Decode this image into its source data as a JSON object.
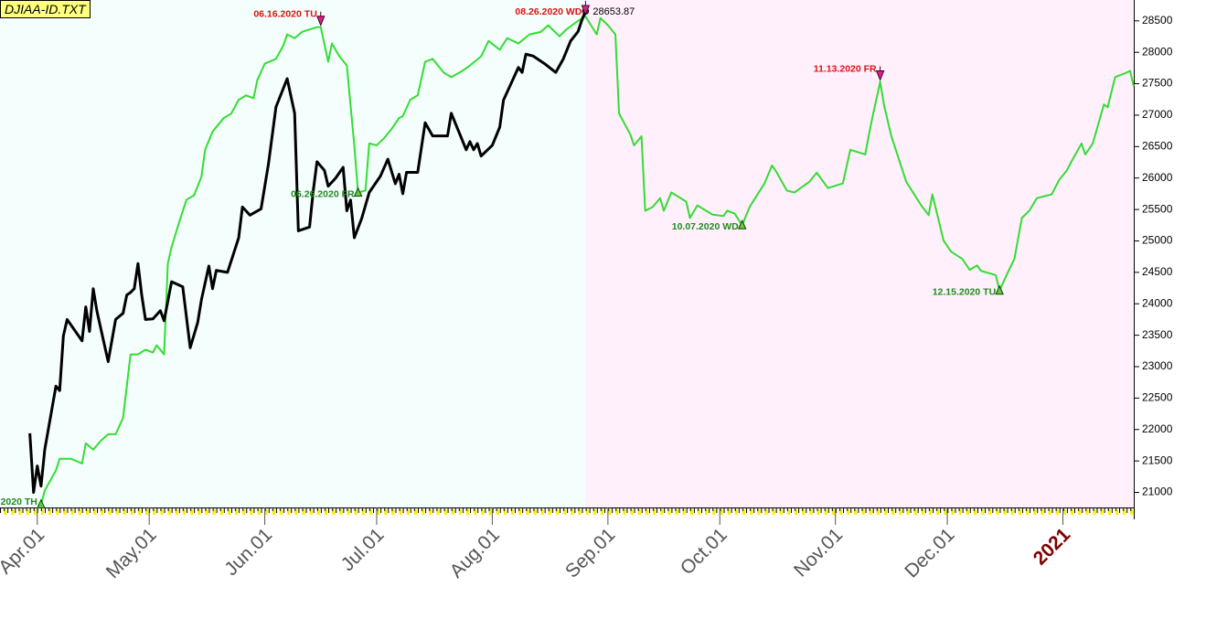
{
  "chart_data": {
    "type": "line",
    "title": "DJIAA-ID.TXT",
    "xlim": [
      "2020-03-22",
      "2021-01-20"
    ],
    "ylim": [
      20760,
      28730
    ],
    "yticks": [
      21000,
      21500,
      22000,
      22500,
      23000,
      23500,
      24000,
      24500,
      25000,
      25500,
      26000,
      26500,
      27000,
      27500,
      28000,
      28500
    ],
    "xticks": [
      {
        "value": "2020-04-01",
        "label": "Apr.01"
      },
      {
        "value": "2020-05-01",
        "label": "May.01"
      },
      {
        "value": "2020-06-01",
        "label": "Jun.01"
      },
      {
        "value": "2020-07-01",
        "label": "Jul.01"
      },
      {
        "value": "2020-08-01",
        "label": "Aug.01"
      },
      {
        "value": "2020-09-01",
        "label": "Sep.01"
      },
      {
        "value": "2020-10-01",
        "label": "Oct.01"
      },
      {
        "value": "2020-11-01",
        "label": "Nov.01"
      },
      {
        "value": "2020-12-01",
        "label": "Dec.01"
      },
      {
        "value": "2021-01-01",
        "label": "2021",
        "color": "#800000"
      }
    ],
    "past_background": "#f4fffd",
    "future_background": "#fff0fc",
    "annotation_colors": {
      "high": "#dd1111",
      "low": "#1f8a1f"
    },
    "series": [
      {
        "color": "#000000",
        "x": [
          "2020-03-30",
          "2020-03-31",
          "2020-04-01",
          "2020-04-02",
          "2020-04-03",
          "2020-04-06",
          "2020-04-07",
          "2020-04-08",
          "2020-04-09",
          "2020-04-13",
          "2020-04-14",
          "2020-04-15",
          "2020-04-16",
          "2020-04-17",
          "2020-04-20",
          "2020-04-22",
          "2020-04-24",
          "2020-04-25",
          "2020-04-26",
          "2020-04-27",
          "2020-04-28",
          "2020-04-29",
          "2020-04-30",
          "2020-05-02",
          "2020-05-04",
          "2020-05-05",
          "2020-05-07",
          "2020-05-10",
          "2020-05-12",
          "2020-05-14",
          "2020-05-15",
          "2020-05-17",
          "2020-05-18",
          "2020-05-19",
          "2020-05-22",
          "2020-05-25",
          "2020-05-26",
          "2020-05-28",
          "2020-05-31",
          "2020-06-02",
          "2020-06-04",
          "2020-06-07",
          "2020-06-09",
          "2020-06-10",
          "2020-06-13",
          "2020-06-14",
          "2020-06-15",
          "2020-06-17",
          "2020-06-18",
          "2020-06-20",
          "2020-06-22",
          "2020-06-23",
          "2020-06-24",
          "2020-06-25",
          "2020-06-27",
          "2020-06-29",
          "2020-07-02",
          "2020-07-04",
          "2020-07-06",
          "2020-07-07",
          "2020-07-08",
          "2020-07-09",
          "2020-07-12",
          "2020-07-14",
          "2020-07-16",
          "2020-07-20",
          "2020-07-21",
          "2020-07-25",
          "2020-07-26",
          "2020-07-27",
          "2020-07-28",
          "2020-07-29",
          "2020-08-01",
          "2020-08-03",
          "2020-08-04",
          "2020-08-06",
          "2020-08-08",
          "2020-08-09",
          "2020-08-10",
          "2020-08-12",
          "2020-08-15",
          "2020-08-18",
          "2020-08-20",
          "2020-08-22",
          "2020-08-24",
          "2020-08-25",
          "2020-08-26"
        ],
        "values": [
          21940,
          21000,
          21420,
          21100,
          21680,
          22690,
          22620,
          23490,
          23750,
          23410,
          23950,
          23560,
          24240,
          23880,
          23080,
          23750,
          23850,
          24140,
          24180,
          24240,
          24640,
          24140,
          23750,
          23760,
          23890,
          23730,
          24350,
          24270,
          23300,
          23700,
          24060,
          24600,
          24240,
          24530,
          24500,
          25050,
          25540,
          25410,
          25510,
          26230,
          27130,
          27580,
          27030,
          25160,
          25220,
          25800,
          26260,
          26120,
          25870,
          26000,
          26170,
          25480,
          25650,
          25050,
          25360,
          25770,
          26030,
          26300,
          25910,
          26060,
          25750,
          26090,
          26090,
          26880,
          26670,
          26670,
          27030,
          26450,
          26580,
          26450,
          26550,
          26350,
          26520,
          26810,
          27240,
          27500,
          27760,
          27680,
          27970,
          27940,
          27820,
          27680,
          27890,
          28180,
          28330,
          28510,
          28653.87
        ]
      },
      {
        "color": "#33dd33",
        "x": [
          "2020-04-02",
          "2020-04-03",
          "2020-04-06",
          "2020-04-07",
          "2020-04-10",
          "2020-04-13",
          "2020-04-14",
          "2020-04-16",
          "2020-04-18",
          "2020-04-20",
          "2020-04-22",
          "2020-04-24",
          "2020-04-26",
          "2020-04-28",
          "2020-04-30",
          "2020-05-02",
          "2020-05-03",
          "2020-05-05",
          "2020-05-06",
          "2020-05-07",
          "2020-05-09",
          "2020-05-11",
          "2020-05-13",
          "2020-05-15",
          "2020-05-16",
          "2020-05-18",
          "2020-05-21",
          "2020-05-23",
          "2020-05-25",
          "2020-05-27",
          "2020-05-29",
          "2020-05-30",
          "2020-06-01",
          "2020-06-04",
          "2020-06-06",
          "2020-06-07",
          "2020-06-09",
          "2020-06-11",
          "2020-06-15",
          "2020-06-16",
          "2020-06-18",
          "2020-06-19",
          "2020-06-21",
          "2020-06-23",
          "2020-06-25",
          "2020-06-26",
          "2020-06-28",
          "2020-06-29",
          "2020-07-01",
          "2020-07-03",
          "2020-07-05",
          "2020-07-07",
          "2020-07-08",
          "2020-07-10",
          "2020-07-12",
          "2020-07-14",
          "2020-07-16",
          "2020-07-19",
          "2020-07-21",
          "2020-07-24",
          "2020-07-26",
          "2020-07-29",
          "2020-07-31",
          "2020-08-03",
          "2020-08-05",
          "2020-08-08",
          "2020-08-11",
          "2020-08-14",
          "2020-08-16",
          "2020-08-19",
          "2020-08-21",
          "2020-08-24",
          "2020-08-26",
          "2020-08-29",
          "2020-08-30",
          "2020-09-01",
          "2020-09-03",
          "2020-09-04",
          "2020-09-07",
          "2020-09-08",
          "2020-09-10",
          "2020-09-11",
          "2020-09-13",
          "2020-09-15",
          "2020-09-16",
          "2020-09-18",
          "2020-09-22",
          "2020-09-23",
          "2020-09-25",
          "2020-09-29",
          "2020-10-02",
          "2020-10-03",
          "2020-10-05",
          "2020-10-07",
          "2020-10-09",
          "2020-10-13",
          "2020-10-15",
          "2020-10-16",
          "2020-10-19",
          "2020-10-21",
          "2020-10-25",
          "2020-10-27",
          "2020-10-30",
          "2020-11-03",
          "2020-11-05",
          "2020-11-09",
          "2020-11-10",
          "2020-11-11",
          "2020-11-13",
          "2020-11-14",
          "2020-11-16",
          "2020-11-20",
          "2020-11-24",
          "2020-11-26",
          "2020-11-27",
          "2020-11-30",
          "2020-12-02",
          "2020-12-05",
          "2020-12-07",
          "2020-12-09",
          "2020-12-10",
          "2020-12-14",
          "2020-12-15",
          "2020-12-17",
          "2020-12-19",
          "2020-12-21",
          "2020-12-23",
          "2020-12-25",
          "2020-12-29",
          "2020-12-31",
          "2021-01-02",
          "2021-01-03",
          "2021-01-06",
          "2021-01-07",
          "2021-01-09",
          "2021-01-12",
          "2021-01-13",
          "2021-01-15",
          "2021-01-18",
          "2021-01-19",
          "2021-01-20"
        ],
        "values": [
          20810,
          21030,
          21350,
          21535,
          21535,
          21460,
          21780,
          21680,
          21820,
          21925,
          21925,
          22185,
          23195,
          23195,
          23270,
          23225,
          23340,
          23195,
          24640,
          24900,
          25290,
          25655,
          25725,
          26015,
          26450,
          26740,
          26955,
          27025,
          27245,
          27315,
          27270,
          27560,
          27820,
          27895,
          28110,
          28285,
          28225,
          28325,
          28400,
          28400,
          27850,
          28140,
          27935,
          27790,
          26520,
          25770,
          25800,
          26550,
          26520,
          26635,
          26780,
          26955,
          26985,
          27245,
          27315,
          27850,
          27895,
          27675,
          27605,
          27705,
          27790,
          27935,
          28180,
          28040,
          28225,
          28140,
          28285,
          28325,
          28430,
          28255,
          28370,
          28500,
          28570,
          28285,
          28545,
          28430,
          28285,
          27025,
          26695,
          26520,
          26665,
          25480,
          25540,
          25680,
          25480,
          25770,
          25625,
          25365,
          25565,
          25420,
          25395,
          25480,
          25435,
          25250,
          25540,
          25915,
          26200,
          26115,
          25800,
          25770,
          25940,
          26085,
          25840,
          25915,
          26450,
          26375,
          26695,
          26985,
          27530,
          27170,
          26665,
          25940,
          25565,
          25410,
          25740,
          25005,
          24830,
          24715,
          24540,
          24610,
          24525,
          24455,
          24210,
          24470,
          24715,
          25365,
          25480,
          25680,
          25740,
          25970,
          26115,
          26230,
          26550,
          26375,
          26550,
          27170,
          27125,
          27605,
          27675,
          27705,
          27460
        ]
      }
    ],
    "annotations": [
      {
        "label": "2020 TH",
        "x": "2020-04-02",
        "kind": "low"
      },
      {
        "label": "06.16.2020 TU",
        "x": "2020-06-16",
        "kind": "high"
      },
      {
        "label": "06.26.2020 FR",
        "x": "2020-06-26",
        "kind": "low"
      },
      {
        "label": "08.26.2020 WD",
        "x": "2020-08-26",
        "kind": "high"
      },
      {
        "label": "10.07.2020 WD",
        "x": "2020-10-07",
        "kind": "low"
      },
      {
        "label": "11.13.2020 FR",
        "x": "2020-11-13",
        "kind": "high"
      },
      {
        "label": "12.15.2020 TU",
        "x": "2020-12-15",
        "kind": "low"
      }
    ]
  }
}
